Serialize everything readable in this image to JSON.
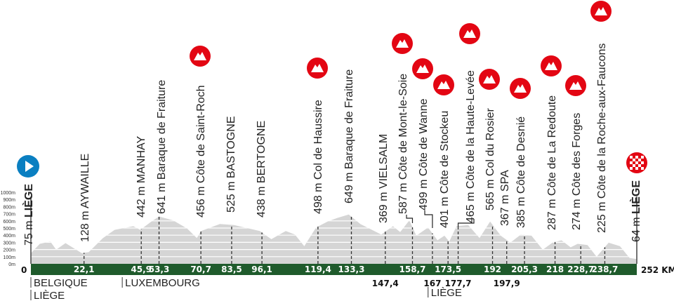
{
  "chart_data": {
    "type": "area",
    "title": "",
    "colors": {
      "profile": "#d5d5d5",
      "bar": "#1f5b2c",
      "climb_icon": "#e30613",
      "start_icon": "#0a7fc1",
      "marker": "#333333"
    },
    "y_axis": {
      "unit": "m",
      "range": [
        0,
        1000
      ],
      "ticks": [
        "0m",
        "100m",
        "200m",
        "300m",
        "400m",
        "500m",
        "600m",
        "700m",
        "800m",
        "900m",
        "1000m"
      ]
    },
    "x_axis": {
      "range": [
        0,
        252
      ],
      "start_label": "0",
      "end_label": "252 KM"
    },
    "profile": [
      [
        0,
        148
      ],
      [
        3.7,
        279
      ],
      [
        8.1,
        311
      ],
      [
        10.5,
        197
      ],
      [
        14.4,
        289
      ],
      [
        21.2,
        148
      ],
      [
        24.1,
        164
      ],
      [
        30,
        360
      ],
      [
        34.8,
        475
      ],
      [
        42.6,
        525
      ],
      [
        45.5,
        475
      ],
      [
        49.4,
        574
      ],
      [
        53.3,
        662
      ],
      [
        59.2,
        607
      ],
      [
        65,
        492
      ],
      [
        69,
        360
      ],
      [
        70.8,
        459
      ],
      [
        78.6,
        557
      ],
      [
        84.5,
        541
      ],
      [
        95.2,
        459
      ],
      [
        100,
        344
      ],
      [
        106,
        459
      ],
      [
        109.8,
        410
      ],
      [
        113.7,
        246
      ],
      [
        118.6,
        508
      ],
      [
        123.4,
        590
      ],
      [
        127.3,
        639
      ],
      [
        132.2,
        688
      ],
      [
        137,
        557
      ],
      [
        145.7,
        410
      ],
      [
        150.6,
        525
      ],
      [
        153.6,
        443
      ],
      [
        157.4,
        607
      ],
      [
        160.3,
        393
      ],
      [
        165.2,
        508
      ],
      [
        169.1,
        328
      ],
      [
        172,
        393
      ],
      [
        174,
        311
      ],
      [
        177,
        525
      ],
      [
        181.9,
        541
      ],
      [
        186.6,
        360
      ],
      [
        191,
        590
      ],
      [
        195.4,
        393
      ],
      [
        199.4,
        295
      ],
      [
        203.8,
        410
      ],
      [
        208.2,
        393
      ],
      [
        212.9,
        197
      ],
      [
        216.9,
        295
      ],
      [
        220.7,
        328
      ],
      [
        224.5,
        230
      ],
      [
        227.4,
        279
      ],
      [
        231.5,
        262
      ],
      [
        235.3,
        98
      ],
      [
        240.3,
        295
      ],
      [
        245,
        246
      ],
      [
        249,
        82
      ],
      [
        252,
        66
      ]
    ],
    "points": [
      {
        "km": 0,
        "km_label": "",
        "elev": "75",
        "name": "LIÈGE",
        "bold": true,
        "icon": "start-icon"
      },
      {
        "km": 22.1,
        "km_label": "22,1",
        "elev": "128",
        "name": "AYWAILLE",
        "icon": ""
      },
      {
        "km": 45.9,
        "km_label": "45,9",
        "elev": "442",
        "name": "MANHAY",
        "icon": ""
      },
      {
        "km": 53.3,
        "km_label": "53,3",
        "elev": "641",
        "name": "Baraque de Fraiture",
        "icon": ""
      },
      {
        "km": 70.7,
        "km_label": "70,7",
        "elev": "456",
        "name": "Côte de Saint-Roch",
        "icon": "mountain-icon"
      },
      {
        "km": 83.5,
        "km_label": "83,5",
        "elev": "525",
        "name": "BASTOGNE",
        "icon": ""
      },
      {
        "km": 96.1,
        "km_label": "96,1",
        "elev": "438",
        "name": "BERTOGNE",
        "icon": ""
      },
      {
        "km": 119.4,
        "km_label": "119,4",
        "elev": "498",
        "name": "Col de Haussire",
        "icon": "mountain-icon"
      },
      {
        "km": 133.3,
        "km_label": "133,3",
        "elev": "649",
        "name": "Baraque de Fraiture",
        "icon": ""
      },
      {
        "km": 147.4,
        "km_label": "147,4",
        "below": true,
        "elev": "369",
        "name": "VIELSALM",
        "icon": ""
      },
      {
        "km": 158.7,
        "km_label": "158,7",
        "elev": "587",
        "name": "Côte de Mont-le-Soie",
        "icon": "mountain-icon"
      },
      {
        "km": 167,
        "km_label": "167",
        "below": true,
        "elev": "499",
        "name": "Côte de Wanne",
        "icon": "mountain-icon"
      },
      {
        "km": 173.5,
        "km_label": "173,5",
        "elev": "401",
        "name": "Côte de Stockeu",
        "icon": "mountain-icon"
      },
      {
        "km": 177.7,
        "km_label": "177,7",
        "below": true,
        "elev": "465",
        "name": "Côte de la Haute-Levée",
        "icon": "mountain-icon"
      },
      {
        "km": 192,
        "km_label": "192",
        "elev": "565",
        "name": "Col du Rosier",
        "icon": "mountain-icon"
      },
      {
        "km": 197.9,
        "km_label": "197,9",
        "below": true,
        "elev": "367",
        "name": "SPA",
        "icon": ""
      },
      {
        "km": 205.3,
        "km_label": "205,3",
        "elev": "385",
        "name": "Côte de Desnié",
        "icon": "mountain-icon"
      },
      {
        "km": 218,
        "km_label": "218",
        "elev": "287",
        "name": "Côte de La Redoute",
        "icon": "mountain-icon"
      },
      {
        "km": 228.7,
        "km_label": "228,7",
        "elev": "274",
        "name": "Côte des Forges",
        "icon": "mountain-icon"
      },
      {
        "km": 238.7,
        "km_label": "238,7",
        "elev": "225",
        "name": "Côte de la Roche-aux-Faucons",
        "icon": "mountain-icon"
      },
      {
        "km": 252,
        "km_label": "",
        "elev": "64",
        "name": "LIÈGE",
        "bold": true,
        "icon": "finish-icon"
      }
    ],
    "regions": [
      {
        "km": 0,
        "label": "BELGIQUE"
      },
      {
        "km": 0,
        "label": "LIÈGE"
      },
      {
        "km": 38,
        "label": "LUXEMBOURG"
      },
      {
        "km": 165.2,
        "label": "LIÈGE"
      }
    ],
    "unit_label": "m"
  }
}
